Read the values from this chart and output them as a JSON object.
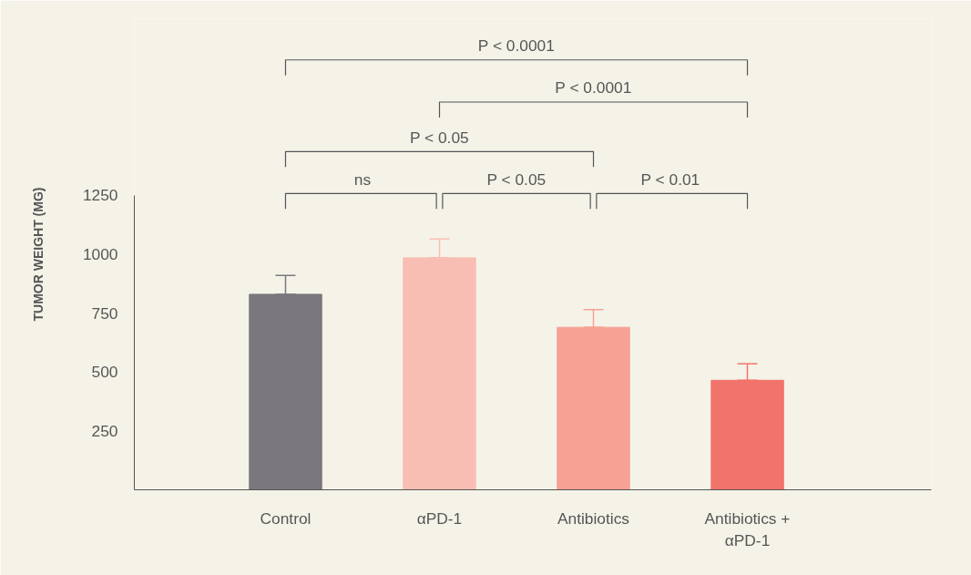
{
  "chart_data": {
    "type": "bar",
    "categories": [
      "Control",
      "αPD-1",
      "Antibiotics",
      "Antibiotics +\nαPD-1"
    ],
    "values": [
      830,
      985,
      690,
      465
    ],
    "colors": [
      "#7a787d",
      "#f9beb3",
      "#f6a194",
      "#f2736b"
    ],
    "errors": [
      [
        830,
        910
      ],
      [
        985,
        1065
      ],
      [
        690,
        765
      ],
      [
        465,
        535
      ]
    ],
    "ylabel": "TUMOR WEIGHT (MG)",
    "ylim": [
      0,
      1250
    ],
    "yticks": [
      250,
      500,
      750,
      1000,
      1250
    ],
    "grid": false,
    "annotations": [
      "P < 0.0001",
      "P < 0.0001",
      "P < 0.05",
      "ns",
      "P < 0.05",
      "P < 0.01"
    ]
  }
}
